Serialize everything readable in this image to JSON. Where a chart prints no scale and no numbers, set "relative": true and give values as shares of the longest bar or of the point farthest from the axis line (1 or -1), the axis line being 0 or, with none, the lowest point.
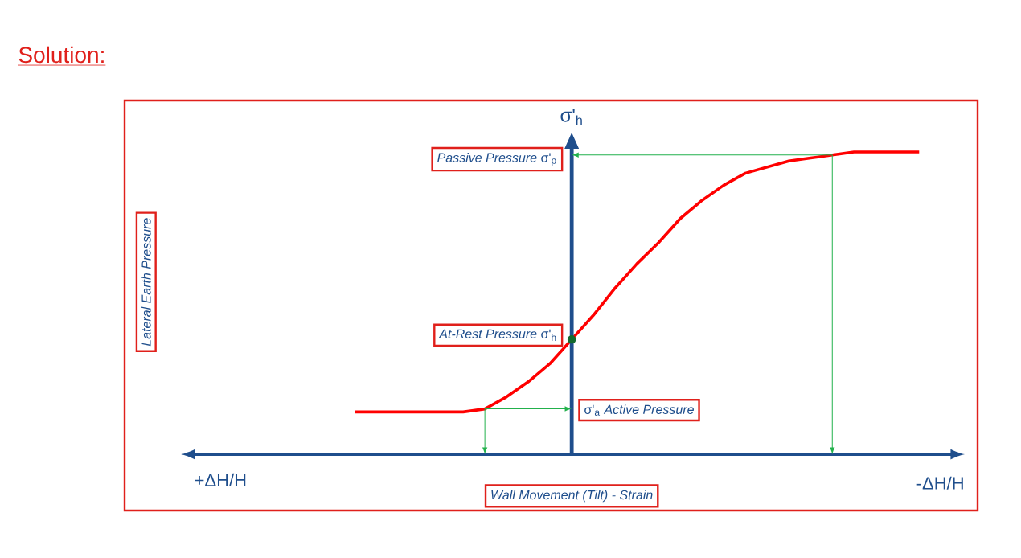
{
  "chart_data": {
    "type": "line",
    "relative": true,
    "title": "Solution:",
    "xlabel": "Wall Movement (Tilt) - Strain",
    "categories": [
      null,
      null,
      null,
      null,
      null,
      null,
      null,
      null,
      null,
      null,
      null,
      null,
      null,
      null,
      null,
      null,
      null,
      null,
      null,
      null,
      null,
      null,
      null,
      null,
      null,
      null,
      null
    ],
    "series": [
      {
        "color": "#ff0000",
        "values": [
          0.14,
          0.14,
          0.14,
          0.14,
          0.14,
          0.14,
          0.15,
          0.19,
          0.24,
          0.3,
          0.38,
          0.46,
          0.55,
          0.63,
          0.7,
          0.78,
          0.84,
          0.89,
          0.93,
          0.95,
          0.97,
          0.98,
          0.99,
          1,
          1,
          1,
          1
        ]
      }
    ],
    "annotations": [
      "σ'$_{h}$",
      "*Passive Pressure* σ'$_{p}$",
      "*At-Rest Pressure* σ'$_{h}$",
      "σ'$_{a}$ *Active Pressure*",
      "+ΔH/H",
      "-ΔH/H",
      "Lateral Earth Pressure"
    ]
  }
}
